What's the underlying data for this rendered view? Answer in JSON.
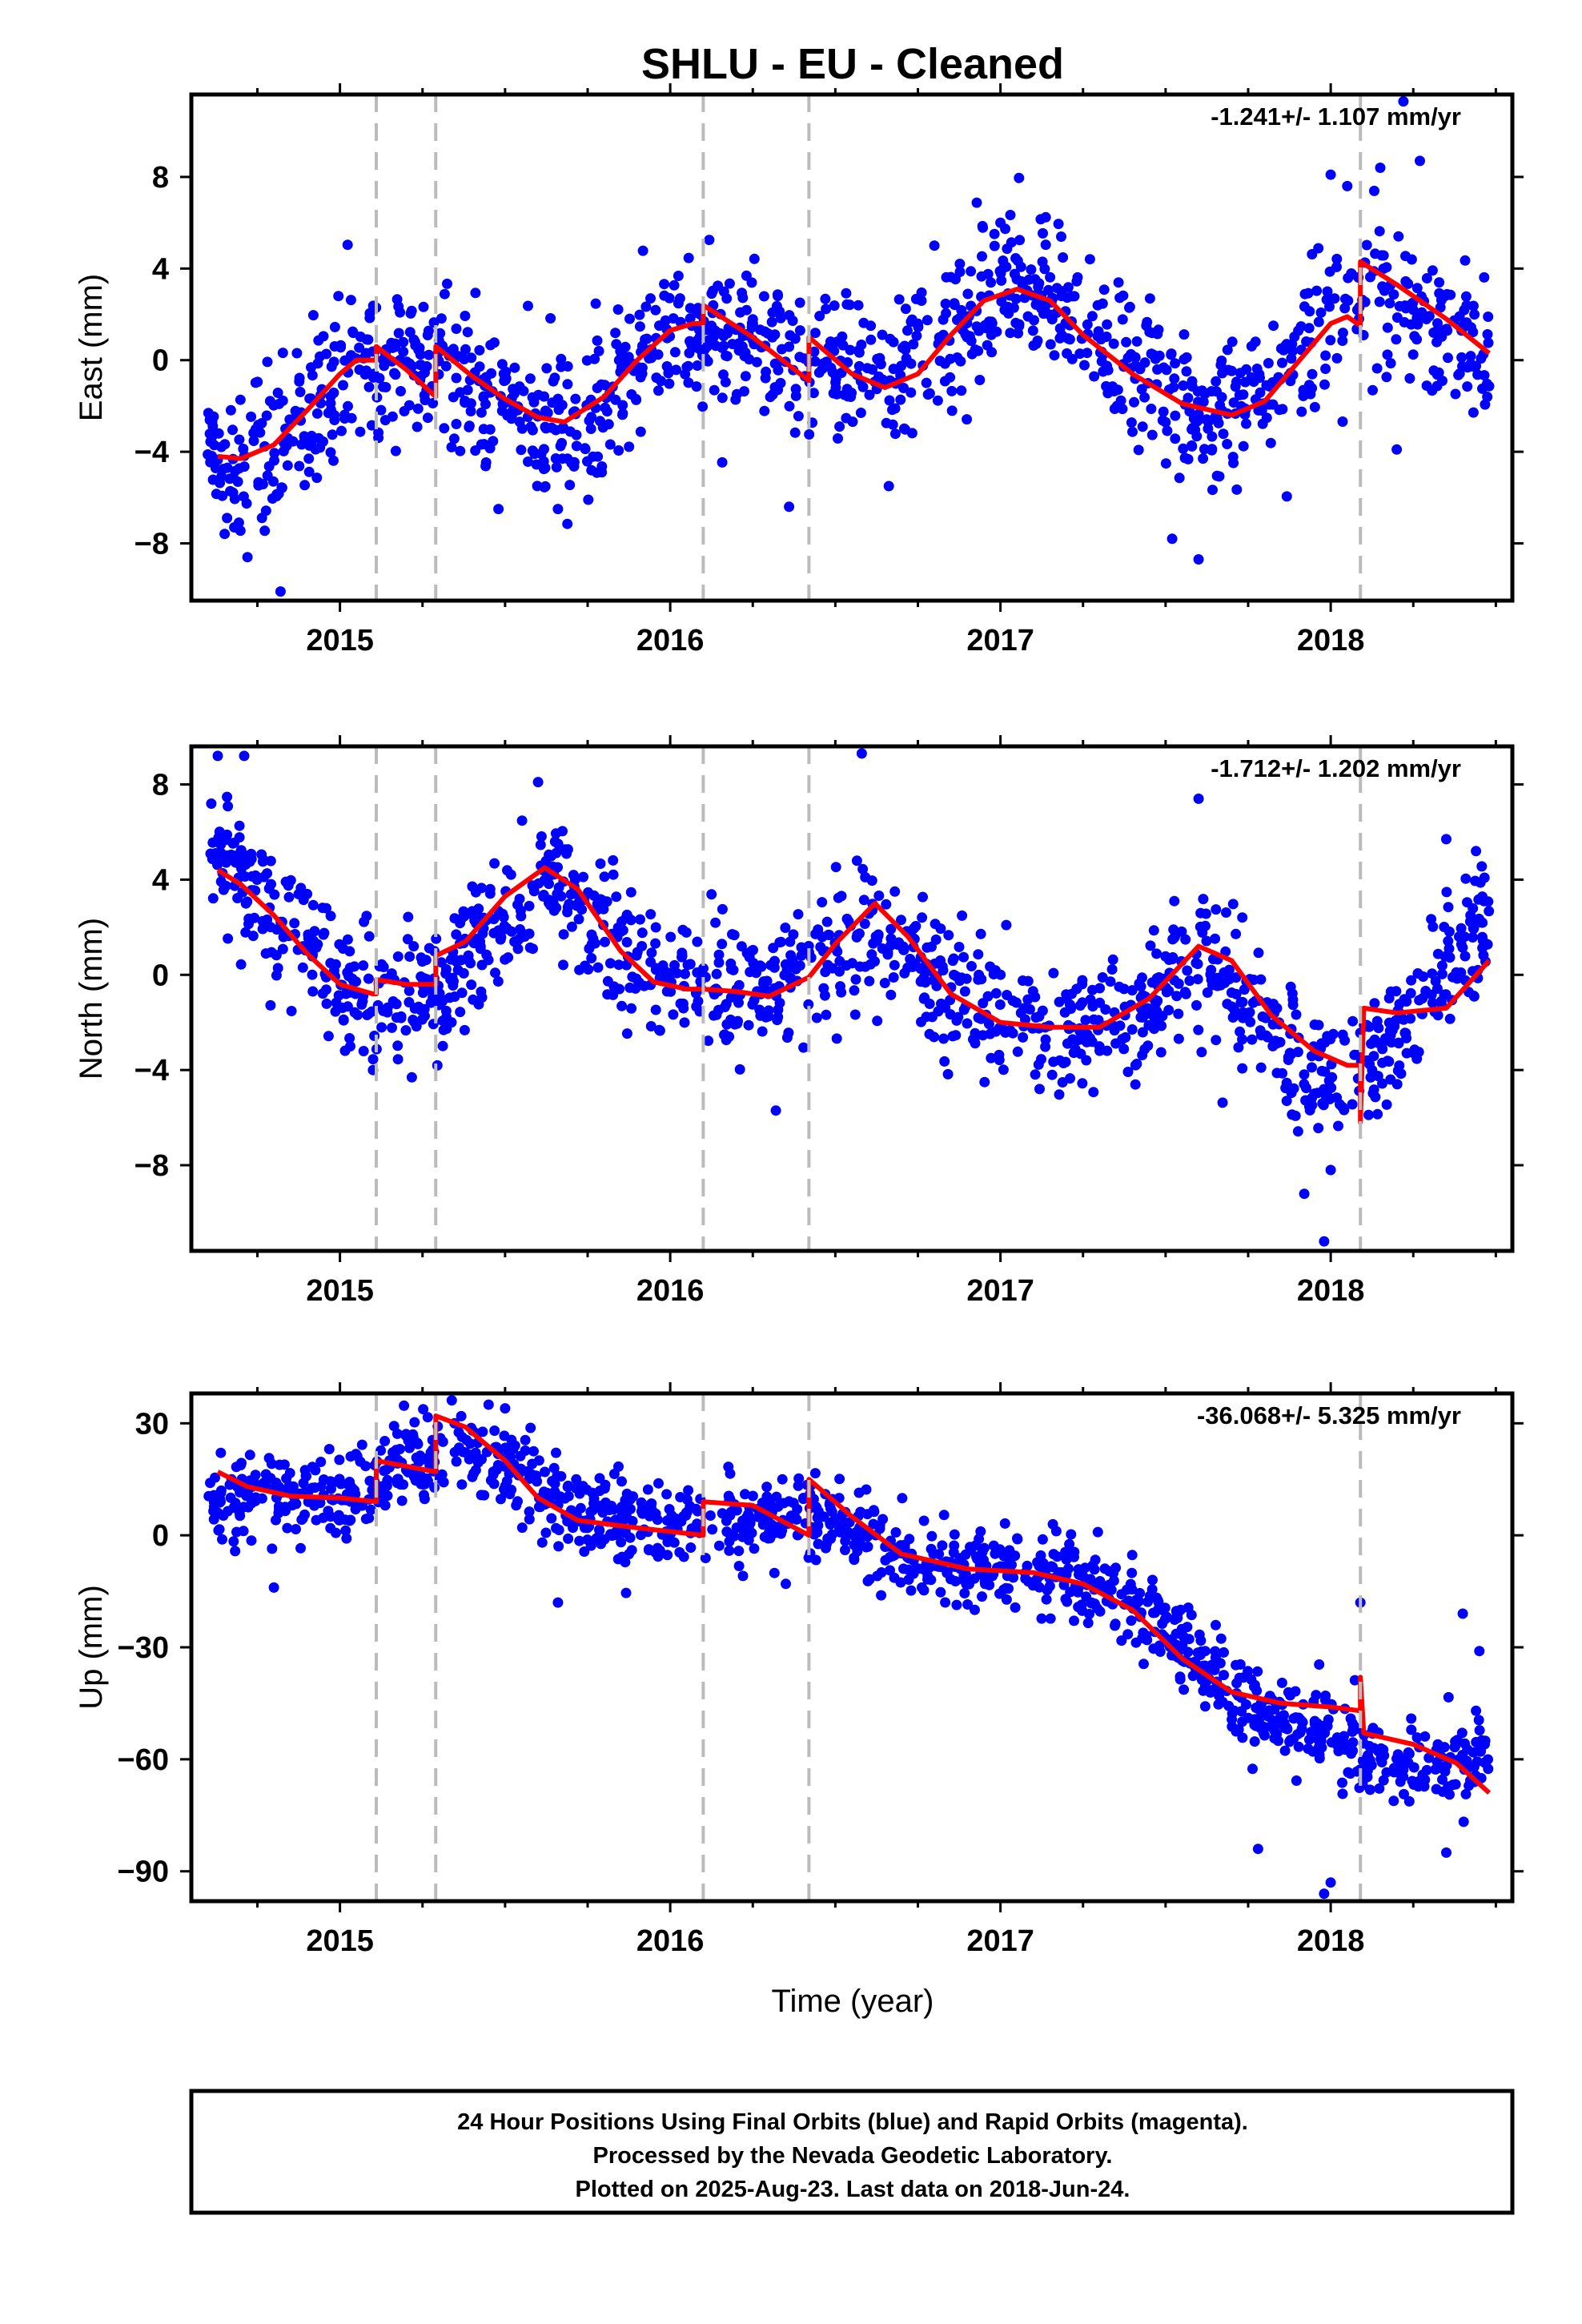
{
  "title": "SHLU  - EU - Cleaned",
  "xlabel": "Time (year)",
  "footer": {
    "line1": "24 Hour Positions Using Final Orbits (blue) and Rapid Orbits (magenta).",
    "line2": "Processed by the Nevada Geodetic Laboratory.",
    "line3": "Plotted on 2025-Aug-23. Last data on 2018-Jun-24."
  },
  "colors": {
    "points": "#0000ff",
    "fit": "#ff0000",
    "events": "#bbbbbb",
    "frame": "#000000"
  },
  "chart_data": [
    {
      "type": "scatter",
      "component": "East",
      "ylabel": "East (mm)",
      "rate_label": "-1.241+/- 1.107 mm/yr",
      "xlim": [
        2014.55,
        2018.55
      ],
      "ylim": [
        -10.5,
        11.6
      ],
      "xticks": [
        2015,
        2016,
        2017,
        2018
      ],
      "yticks": [
        -8,
        -4,
        0,
        4,
        8
      ],
      "ytick_labels": [
        "−8",
        "−4",
        "0",
        "4",
        "8"
      ],
      "events": [
        2015.11,
        2015.29,
        2016.1,
        2016.42,
        2018.09
      ],
      "series": [
        {
          "values": [
            [
              2014.63,
              -4.2
            ],
            [
              2014.7,
              -4.3
            ],
            [
              2014.8,
              -3.7
            ],
            [
              2014.9,
              -2.2
            ],
            [
              2015.0,
              -0.6
            ],
            [
              2015.05,
              0.0
            ],
            [
              2015.11,
              0.0
            ],
            [
              2015.11,
              0.6
            ],
            [
              2015.2,
              -0.4
            ],
            [
              2015.29,
              -1.6
            ],
            [
              2015.29,
              0.6
            ],
            [
              2015.4,
              -0.7
            ],
            [
              2015.5,
              -1.7
            ],
            [
              2015.6,
              -2.5
            ],
            [
              2015.68,
              -2.7
            ],
            [
              2015.8,
              -1.6
            ],
            [
              2015.9,
              0.0
            ],
            [
              2016.0,
              1.3
            ],
            [
              2016.07,
              1.6
            ],
            [
              2016.1,
              1.6
            ],
            [
              2016.1,
              2.4
            ],
            [
              2016.25,
              1.0
            ],
            [
              2016.42,
              -0.9
            ],
            [
              2016.42,
              1.0
            ],
            [
              2016.55,
              -0.6
            ],
            [
              2016.65,
              -1.2
            ],
            [
              2016.75,
              -0.6
            ],
            [
              2016.85,
              1.1
            ],
            [
              2016.95,
              2.6
            ],
            [
              2017.05,
              3.1
            ],
            [
              2017.15,
              2.6
            ],
            [
              2017.25,
              1.1
            ],
            [
              2017.4,
              -0.6
            ],
            [
              2017.55,
              -1.9
            ],
            [
              2017.7,
              -2.4
            ],
            [
              2017.8,
              -1.8
            ],
            [
              2017.9,
              -0.1
            ],
            [
              2018.0,
              1.6
            ],
            [
              2018.05,
              1.9
            ],
            [
              2018.09,
              1.5
            ],
            [
              2018.09,
              4.3
            ],
            [
              2018.2,
              3.3
            ],
            [
              2018.35,
              1.8
            ],
            [
              2018.48,
              0.3
            ]
          ]
        }
      ],
      "scatter_model": {
        "x_start": 2014.6,
        "x_end": 2018.48,
        "count": 1290,
        "scatter_sd": 1.6,
        "trend_points": [
          [
            2014.6,
            -3.9
          ],
          [
            2014.75,
            -4.4
          ],
          [
            2014.9,
            -2.2
          ],
          [
            2015.05,
            0.2
          ],
          [
            2015.3,
            -0.1
          ],
          [
            2015.6,
            -3.0
          ],
          [
            2015.75,
            -2.6
          ],
          [
            2016.0,
            1.3
          ],
          [
            2016.3,
            0.6
          ],
          [
            2016.65,
            -1.0
          ],
          [
            2017.05,
            3.6
          ],
          [
            2017.4,
            -0.5
          ],
          [
            2017.65,
            -2.7
          ],
          [
            2017.9,
            0.0
          ],
          [
            2018.1,
            3.3
          ],
          [
            2018.48,
            0.5
          ]
        ],
        "outliers": [
          [
            2014.72,
            -8.6
          ],
          [
            2014.82,
            -10.1
          ],
          [
            2014.68,
            -7.3
          ],
          [
            2015.48,
            -6.5
          ],
          [
            2015.66,
            -6.5
          ],
          [
            2016.36,
            -6.4
          ],
          [
            2017.6,
            -8.7
          ],
          [
            2017.52,
            -7.8
          ],
          [
            2018.0,
            8.1
          ],
          [
            2018.05,
            7.6
          ],
          [
            2018.15,
            8.4
          ],
          [
            2018.27,
            8.7
          ],
          [
            2018.22,
            11.3
          ],
          [
            2018.2,
            -3.9
          ],
          [
            2016.8,
            5.0
          ],
          [
            2017.0,
            6.0
          ]
        ]
      }
    },
    {
      "type": "scatter",
      "component": "North",
      "ylabel": "North (mm)",
      "rate_label": "-1.712+/- 1.202 mm/yr",
      "xlim": [
        2014.55,
        2018.55
      ],
      "ylim": [
        -11.6,
        9.6
      ],
      "xticks": [
        2015,
        2016,
        2017,
        2018
      ],
      "yticks": [
        -8,
        -4,
        0,
        4,
        8
      ],
      "ytick_labels": [
        "−8",
        "−4",
        "0",
        "4",
        "8"
      ],
      "events": [
        2015.11,
        2015.29,
        2016.1,
        2016.42,
        2018.09
      ],
      "series": [
        {
          "values": [
            [
              2014.63,
              4.4
            ],
            [
              2014.7,
              3.8
            ],
            [
              2014.8,
              2.5
            ],
            [
              2014.9,
              0.9
            ],
            [
              2015.0,
              -0.4
            ],
            [
              2015.1,
              -0.8
            ],
            [
              2015.11,
              -0.8
            ],
            [
              2015.11,
              -0.2
            ],
            [
              2015.2,
              -0.4
            ],
            [
              2015.29,
              -0.4
            ],
            [
              2015.29,
              0.8
            ],
            [
              2015.38,
              1.4
            ],
            [
              2015.5,
              3.3
            ],
            [
              2015.62,
              4.5
            ],
            [
              2015.72,
              3.6
            ],
            [
              2015.85,
              1.0
            ],
            [
              2015.95,
              -0.3
            ],
            [
              2016.05,
              -0.6
            ],
            [
              2016.1,
              -0.6
            ],
            [
              2016.2,
              -0.7
            ],
            [
              2016.3,
              -0.9
            ],
            [
              2016.42,
              -0.1
            ],
            [
              2016.5,
              1.3
            ],
            [
              2016.62,
              3.0
            ],
            [
              2016.72,
              1.6
            ],
            [
              2016.85,
              -0.8
            ],
            [
              2017.0,
              -2.0
            ],
            [
              2017.15,
              -2.2
            ],
            [
              2017.3,
              -2.2
            ],
            [
              2017.45,
              -1.0
            ],
            [
              2017.6,
              1.2
            ],
            [
              2017.7,
              0.6
            ],
            [
              2017.82,
              -1.7
            ],
            [
              2017.95,
              -3.2
            ],
            [
              2018.05,
              -3.8
            ],
            [
              2018.09,
              -3.8
            ],
            [
              2018.09,
              -6.2
            ],
            [
              2018.1,
              -1.4
            ],
            [
              2018.2,
              -1.6
            ],
            [
              2018.35,
              -1.4
            ],
            [
              2018.48,
              0.6
            ]
          ]
        }
      ],
      "scatter_model": {
        "x_start": 2014.6,
        "x_end": 2018.48,
        "count": 1290,
        "scatter_sd": 1.35,
        "trend_points": [
          [
            2014.6,
            6.2
          ],
          [
            2014.7,
            4.0
          ],
          [
            2014.9,
            1.0
          ],
          [
            2015.05,
            -1.1
          ],
          [
            2015.3,
            -0.5
          ],
          [
            2015.62,
            4.3
          ],
          [
            2015.85,
            0.8
          ],
          [
            2016.1,
            -0.6
          ],
          [
            2016.35,
            -0.2
          ],
          [
            2016.62,
            2.0
          ],
          [
            2016.85,
            -0.4
          ],
          [
            2017.15,
            -2.3
          ],
          [
            2017.4,
            -1.6
          ],
          [
            2017.62,
            0.8
          ],
          [
            2017.95,
            -4.3
          ],
          [
            2018.09,
            -3.8
          ],
          [
            2018.2,
            -2.5
          ],
          [
            2018.48,
            2.5
          ]
        ],
        "outliers": [
          [
            2014.63,
            9.2
          ],
          [
            2014.71,
            9.2
          ],
          [
            2016.58,
            9.3
          ],
          [
            2017.6,
            7.4
          ],
          [
            2017.98,
            -11.2
          ],
          [
            2018.0,
            -8.2
          ],
          [
            2017.92,
            -9.2
          ],
          [
            2018.35,
            5.7
          ],
          [
            2018.44,
            5.2
          ],
          [
            2016.32,
            -5.7
          ],
          [
            2015.1,
            -4.0
          ],
          [
            2015.6,
            8.1
          ]
        ]
      }
    },
    {
      "type": "scatter",
      "component": "Up",
      "ylabel": "Up (mm)",
      "rate_label": "-36.068+/- 5.325 mm/yr",
      "xlim": [
        2014.55,
        2018.55
      ],
      "ylim": [
        -98,
        38
      ],
      "xticks": [
        2015,
        2016,
        2017,
        2018
      ],
      "yticks": [
        -90,
        -60,
        -30,
        0,
        30
      ],
      "ytick_labels": [
        "−90",
        "−60",
        "−30",
        "0",
        "30"
      ],
      "events": [
        2015.11,
        2015.29,
        2016.1,
        2016.42,
        2018.09
      ],
      "series": [
        {
          "values": [
            [
              2014.63,
              17
            ],
            [
              2014.72,
              13
            ],
            [
              2014.85,
              10.5
            ],
            [
              2015.0,
              10
            ],
            [
              2015.11,
              9
            ],
            [
              2015.11,
              20
            ],
            [
              2015.29,
              17
            ],
            [
              2015.29,
              32
            ],
            [
              2015.38,
              29
            ],
            [
              2015.5,
              20
            ],
            [
              2015.6,
              10
            ],
            [
              2015.72,
              4
            ],
            [
              2015.9,
              2
            ],
            [
              2016.1,
              0
            ],
            [
              2016.1,
              9
            ],
            [
              2016.25,
              8
            ],
            [
              2016.42,
              0
            ],
            [
              2016.42,
              15
            ],
            [
              2016.55,
              5
            ],
            [
              2016.7,
              -5
            ],
            [
              2016.9,
              -9
            ],
            [
              2017.1,
              -10
            ],
            [
              2017.25,
              -13
            ],
            [
              2017.4,
              -20
            ],
            [
              2017.55,
              -33
            ],
            [
              2017.7,
              -42
            ],
            [
              2017.85,
              -45
            ],
            [
              2018.0,
              -46
            ],
            [
              2018.09,
              -47
            ],
            [
              2018.09,
              -38
            ],
            [
              2018.1,
              -53
            ],
            [
              2018.25,
              -56
            ],
            [
              2018.38,
              -61
            ],
            [
              2018.48,
              -69
            ]
          ]
        }
      ],
      "scatter_model": {
        "x_start": 2014.6,
        "x_end": 2018.48,
        "count": 1290,
        "scatter_sd": 5.5,
        "trend_points": [
          [
            2014.6,
            8
          ],
          [
            2014.75,
            11
          ],
          [
            2015.0,
            10
          ],
          [
            2015.11,
            14
          ],
          [
            2015.35,
            25
          ],
          [
            2015.55,
            14
          ],
          [
            2015.75,
            5
          ],
          [
            2016.1,
            3
          ],
          [
            2016.42,
            6
          ],
          [
            2016.8,
            -8
          ],
          [
            2017.2,
            -10
          ],
          [
            2017.45,
            -21
          ],
          [
            2017.7,
            -43
          ],
          [
            2018.0,
            -55
          ],
          [
            2018.2,
            -62
          ],
          [
            2018.48,
            -60
          ]
        ],
        "outliers": [
          [
            2014.8,
            -14
          ],
          [
            2015.66,
            -18
          ],
          [
            2015.45,
            35
          ],
          [
            2015.5,
            34
          ],
          [
            2017.98,
            -96
          ],
          [
            2018.0,
            -93
          ],
          [
            2017.78,
            -84
          ],
          [
            2018.44,
            -47
          ],
          [
            2018.45,
            -31
          ],
          [
            2018.35,
            -85
          ],
          [
            2018.09,
            -18
          ],
          [
            2018.4,
            -21
          ],
          [
            2016.35,
            -13
          ],
          [
            2017.62,
            -31
          ]
        ]
      }
    }
  ]
}
